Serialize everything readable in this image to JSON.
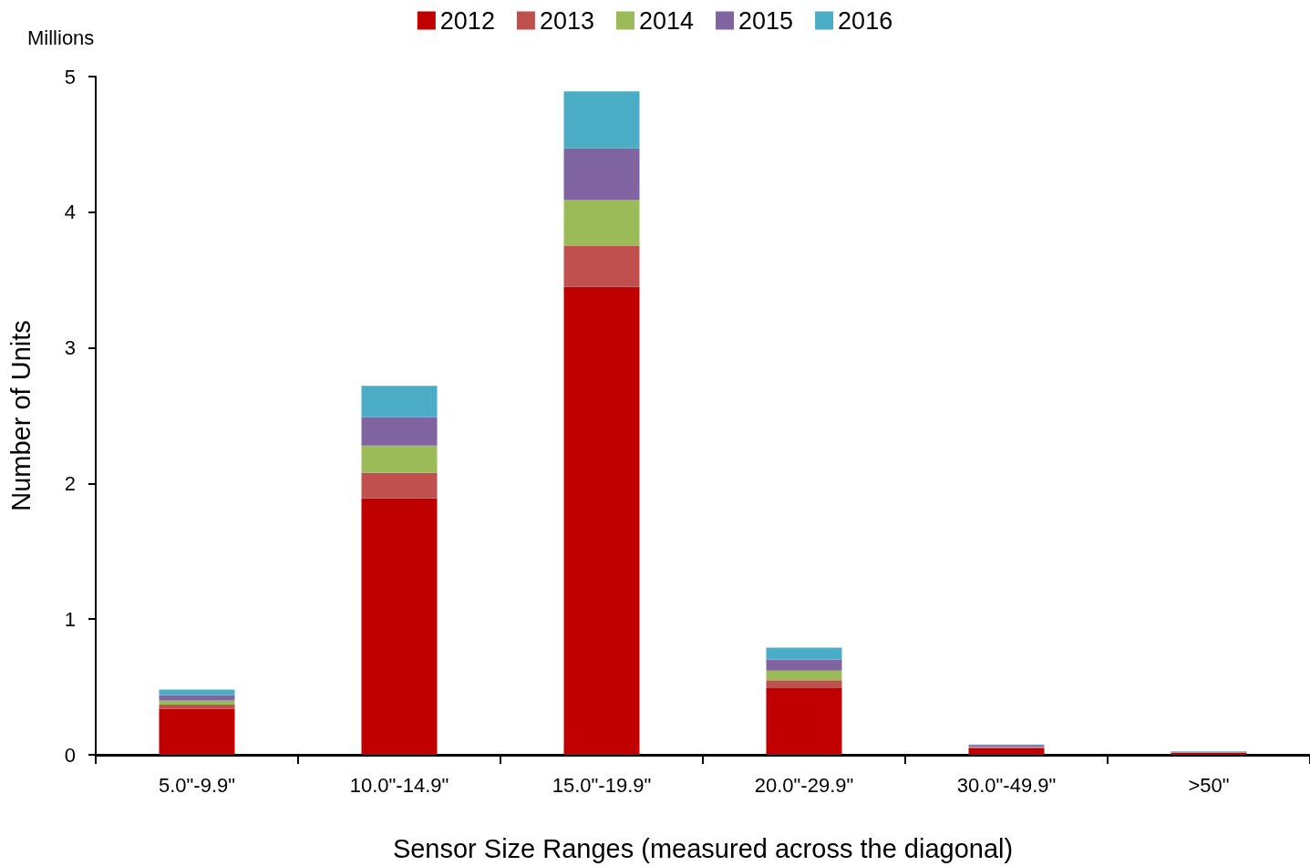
{
  "chart_data": {
    "type": "bar",
    "stacked": true,
    "xlabel": "Sensor Size Ranges (measured across the diagonal)",
    "ylabel": "Number of Units",
    "annotations": [
      "Millions"
    ],
    "categories": [
      "5.0\"-9.9\"",
      "10.0\"-14.9\"",
      "15.0\"-19.9\"",
      "20.0\"-29.9\"",
      "30.0\"-49.9\"",
      ">50\""
    ],
    "series": [
      {
        "name": "2012",
        "color": "#c00000",
        "values": [
          0.34,
          1.89,
          3.45,
          0.49,
          0.05,
          0.015
        ]
      },
      {
        "name": "2013",
        "color": "#c0504d",
        "values": [
          0.03,
          0.19,
          0.3,
          0.06,
          0.005,
          0.002
        ]
      },
      {
        "name": "2014",
        "color": "#9bbb59",
        "values": [
          0.03,
          0.2,
          0.34,
          0.07,
          0.006,
          0.002
        ]
      },
      {
        "name": "2015",
        "color": "#8064a2",
        "values": [
          0.04,
          0.21,
          0.38,
          0.08,
          0.007,
          0.003
        ]
      },
      {
        "name": "2016",
        "color": "#4bacc6",
        "values": [
          0.04,
          0.23,
          0.42,
          0.09,
          0.008,
          0.003
        ]
      }
    ],
    "ylim": [
      0,
      5
    ],
    "yticks": [
      0,
      1,
      2,
      3,
      4,
      5
    ],
    "grid": false,
    "legend": "top"
  }
}
